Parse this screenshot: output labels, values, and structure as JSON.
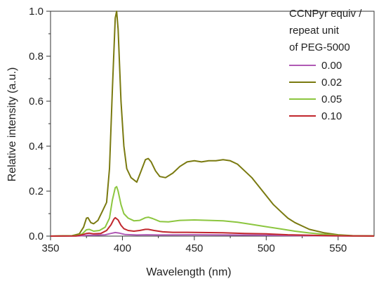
{
  "chart_data": {
    "type": "line",
    "xlabel": "Wavelength (nm)",
    "ylabel": "Relative intensity (a.u.)",
    "xlim": [
      350,
      575
    ],
    "ylim": [
      0,
      1.0
    ],
    "xticks": [
      350,
      400,
      450,
      500,
      550
    ],
    "yticks": [
      0.0,
      0.2,
      0.4,
      0.6,
      0.8,
      1.0
    ],
    "xtick_labels": [
      "350",
      "400",
      "450",
      "500",
      "550"
    ],
    "ytick_labels": [
      "0.0",
      "0.2",
      "0.4",
      "0.6",
      "0.8",
      "1.0"
    ],
    "legend": {
      "title_lines": [
        "CCNPyr equiv /",
        "repeat unit",
        "of PEG-5000"
      ],
      "placement": "top-right"
    },
    "series": [
      {
        "name": "0.00",
        "color": "#b05ab5",
        "points": [
          [
            350,
            0
          ],
          [
            370,
            0.001
          ],
          [
            376,
            0.004
          ],
          [
            380,
            0.004
          ],
          [
            388,
            0.006
          ],
          [
            392,
            0.012
          ],
          [
            395,
            0.016
          ],
          [
            398,
            0.013
          ],
          [
            402,
            0.007
          ],
          [
            410,
            0.005
          ],
          [
            417,
            0.006
          ],
          [
            425,
            0.005
          ],
          [
            450,
            0.006
          ],
          [
            475,
            0.005
          ],
          [
            500,
            0.004
          ],
          [
            525,
            0.002
          ],
          [
            550,
            0.001
          ],
          [
            575,
            0.0005
          ]
        ]
      },
      {
        "name": "0.02",
        "color": "#7a7a10",
        "points": [
          [
            350,
            0
          ],
          [
            365,
            0.002
          ],
          [
            370,
            0.01
          ],
          [
            373,
            0.04
          ],
          [
            375,
            0.08
          ],
          [
            376,
            0.082
          ],
          [
            378,
            0.06
          ],
          [
            380,
            0.055
          ],
          [
            383,
            0.07
          ],
          [
            386,
            0.11
          ],
          [
            389,
            0.15
          ],
          [
            391,
            0.3
          ],
          [
            393,
            0.65
          ],
          [
            395,
            0.97
          ],
          [
            396,
            1.0
          ],
          [
            397,
            0.92
          ],
          [
            399,
            0.6
          ],
          [
            401,
            0.4
          ],
          [
            403,
            0.3
          ],
          [
            406,
            0.26
          ],
          [
            410,
            0.24
          ],
          [
            413,
            0.29
          ],
          [
            416,
            0.34
          ],
          [
            418,
            0.345
          ],
          [
            420,
            0.33
          ],
          [
            423,
            0.29
          ],
          [
            426,
            0.265
          ],
          [
            430,
            0.26
          ],
          [
            435,
            0.28
          ],
          [
            440,
            0.31
          ],
          [
            445,
            0.33
          ],
          [
            450,
            0.335
          ],
          [
            455,
            0.33
          ],
          [
            460,
            0.335
          ],
          [
            465,
            0.335
          ],
          [
            470,
            0.34
          ],
          [
            475,
            0.335
          ],
          [
            480,
            0.32
          ],
          [
            485,
            0.29
          ],
          [
            490,
            0.26
          ],
          [
            495,
            0.22
          ],
          [
            500,
            0.18
          ],
          [
            505,
            0.14
          ],
          [
            510,
            0.11
          ],
          [
            515,
            0.08
          ],
          [
            520,
            0.06
          ],
          [
            525,
            0.045
          ],
          [
            530,
            0.03
          ],
          [
            540,
            0.015
          ],
          [
            550,
            0.006
          ],
          [
            560,
            0.002
          ],
          [
            575,
            0.0005
          ]
        ]
      },
      {
        "name": "0.05",
        "color": "#8cc63f",
        "points": [
          [
            350,
            0
          ],
          [
            368,
            0.002
          ],
          [
            372,
            0.01
          ],
          [
            375,
            0.028
          ],
          [
            377,
            0.03
          ],
          [
            380,
            0.022
          ],
          [
            384,
            0.025
          ],
          [
            388,
            0.04
          ],
          [
            391,
            0.08
          ],
          [
            393,
            0.16
          ],
          [
            395,
            0.215
          ],
          [
            396,
            0.22
          ],
          [
            397,
            0.2
          ],
          [
            399,
            0.14
          ],
          [
            401,
            0.1
          ],
          [
            404,
            0.08
          ],
          [
            408,
            0.068
          ],
          [
            412,
            0.07
          ],
          [
            416,
            0.082
          ],
          [
            418,
            0.084
          ],
          [
            421,
            0.078
          ],
          [
            426,
            0.065
          ],
          [
            432,
            0.063
          ],
          [
            440,
            0.07
          ],
          [
            450,
            0.072
          ],
          [
            460,
            0.07
          ],
          [
            470,
            0.068
          ],
          [
            480,
            0.062
          ],
          [
            490,
            0.052
          ],
          [
            500,
            0.042
          ],
          [
            510,
            0.032
          ],
          [
            520,
            0.022
          ],
          [
            530,
            0.014
          ],
          [
            540,
            0.008
          ],
          [
            550,
            0.004
          ],
          [
            560,
            0.001
          ],
          [
            575,
            0.0003
          ]
        ]
      },
      {
        "name": "0.10",
        "color": "#c1272d",
        "points": [
          [
            350,
            0
          ],
          [
            368,
            0.001
          ],
          [
            372,
            0.006
          ],
          [
            375,
            0.012
          ],
          [
            377,
            0.013
          ],
          [
            380,
            0.01
          ],
          [
            385,
            0.012
          ],
          [
            389,
            0.025
          ],
          [
            392,
            0.05
          ],
          [
            394,
            0.075
          ],
          [
            395,
            0.082
          ],
          [
            397,
            0.072
          ],
          [
            399,
            0.048
          ],
          [
            401,
            0.033
          ],
          [
            404,
            0.025
          ],
          [
            408,
            0.022
          ],
          [
            412,
            0.025
          ],
          [
            416,
            0.03
          ],
          [
            418,
            0.03
          ],
          [
            422,
            0.025
          ],
          [
            428,
            0.019
          ],
          [
            435,
            0.017
          ],
          [
            445,
            0.017
          ],
          [
            455,
            0.016
          ],
          [
            470,
            0.015
          ],
          [
            485,
            0.012
          ],
          [
            500,
            0.01
          ],
          [
            515,
            0.006
          ],
          [
            530,
            0.004
          ],
          [
            545,
            0.002
          ],
          [
            560,
            0.001
          ],
          [
            575,
            0.0002
          ]
        ]
      }
    ]
  }
}
